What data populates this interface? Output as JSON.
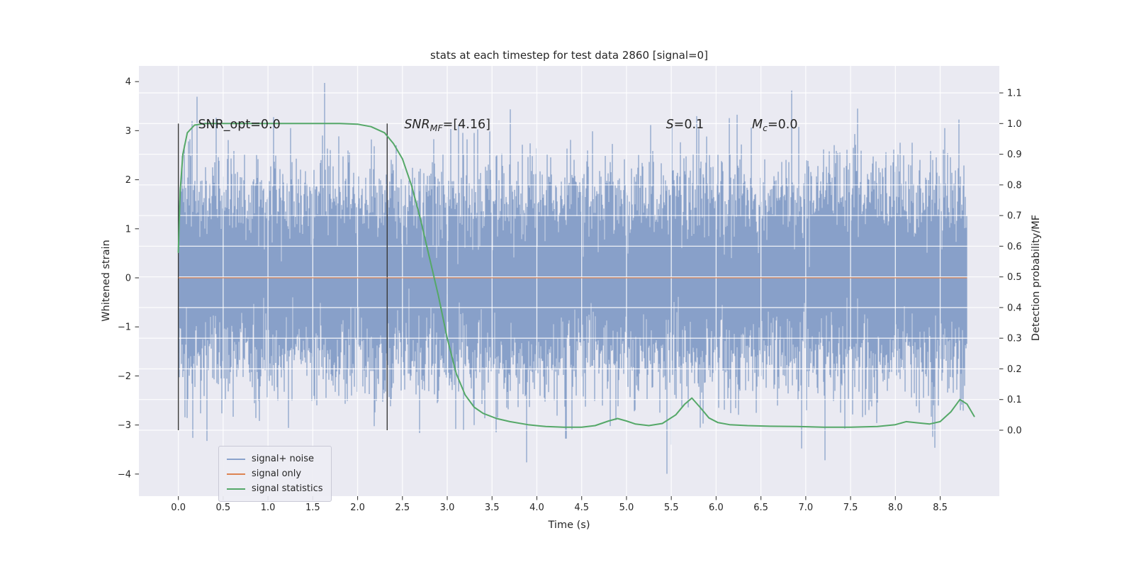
{
  "figure": {
    "title": "stats at each timestep for test data 2860 [signal=0]",
    "xlabel": "Time (s)",
    "ylabel_left": "Whitened strain",
    "ylabel_right": "Detection probability/MF",
    "colors": {
      "figure_bg": "#ffffff",
      "axes_bg": "#eaeaf2",
      "grid": "#ffffff",
      "noise": "#4c72b0",
      "noise_legend": "#8aa2cc",
      "signal": "#dd8452",
      "stat": "#55a868",
      "vline": "#3a3a3a",
      "text": "#262626"
    }
  },
  "chart_data": {
    "type": "line",
    "title": "stats at each timestep for test data 2860 [signal=0]",
    "xlabel": "Time (s)",
    "ylabel": "Whitened strain",
    "ylabel_right": "Detection probability/MF",
    "xlim": [
      -0.44,
      9.16
    ],
    "ylim_left": [
      -4.45,
      4.32
    ],
    "ylim_right": [
      -0.215,
      1.188
    ],
    "xticks": [
      0.0,
      0.5,
      1.0,
      1.5,
      2.0,
      2.5,
      3.0,
      3.5,
      4.0,
      4.5,
      5.0,
      5.5,
      6.0,
      6.5,
      7.0,
      7.5,
      8.0,
      8.5
    ],
    "yticks_left": [
      -4,
      -3,
      -2,
      -1,
      0,
      1,
      2,
      3,
      4
    ],
    "yticks_right": [
      0.0,
      0.1,
      0.2,
      0.3,
      0.4,
      0.5,
      0.6,
      0.7,
      0.8,
      0.9,
      1.0,
      1.1
    ],
    "grid": true,
    "legend": {
      "position": "lower left",
      "entries": [
        {
          "label": "signal+ noise",
          "color": "#8aa2cc"
        },
        {
          "label": "signal only",
          "color": "#dd8452"
        },
        {
          "label": "signal statistics",
          "color": "#55a868"
        }
      ]
    },
    "series": [
      {
        "name": "signal+ noise",
        "axis": "left",
        "kind": "gaussian-noise",
        "mean": 0.0,
        "std": 1.0,
        "t_start": 0.0,
        "t_end": 8.8,
        "approx_range": [
          -4.0,
          4.0
        ],
        "seed": 2860
      },
      {
        "name": "signal only",
        "axis": "left",
        "kind": "constant",
        "value": 0.0,
        "t_start": 0.0,
        "t_end": 8.8
      },
      {
        "name": "signal statistics",
        "axis": "right",
        "kind": "curve",
        "points": [
          [
            0.0,
            0.58
          ],
          [
            0.02,
            0.78
          ],
          [
            0.05,
            0.9
          ],
          [
            0.1,
            0.97
          ],
          [
            0.18,
            0.995
          ],
          [
            0.3,
            1.0
          ],
          [
            0.6,
            1.0
          ],
          [
            1.0,
            1.0
          ],
          [
            1.4,
            1.0
          ],
          [
            1.8,
            1.0
          ],
          [
            2.0,
            0.998
          ],
          [
            2.15,
            0.99
          ],
          [
            2.3,
            0.97
          ],
          [
            2.4,
            0.935
          ],
          [
            2.5,
            0.885
          ],
          [
            2.6,
            0.8
          ],
          [
            2.7,
            0.69
          ],
          [
            2.8,
            0.565
          ],
          [
            2.9,
            0.44
          ],
          [
            3.0,
            0.3
          ],
          [
            3.1,
            0.185
          ],
          [
            3.2,
            0.115
          ],
          [
            3.3,
            0.075
          ],
          [
            3.4,
            0.055
          ],
          [
            3.55,
            0.038
          ],
          [
            3.7,
            0.028
          ],
          [
            3.9,
            0.018
          ],
          [
            4.1,
            0.012
          ],
          [
            4.3,
            0.01
          ],
          [
            4.5,
            0.01
          ],
          [
            4.65,
            0.015
          ],
          [
            4.8,
            0.03
          ],
          [
            4.9,
            0.038
          ],
          [
            5.0,
            0.03
          ],
          [
            5.1,
            0.02
          ],
          [
            5.25,
            0.015
          ],
          [
            5.4,
            0.022
          ],
          [
            5.55,
            0.05
          ],
          [
            5.65,
            0.085
          ],
          [
            5.73,
            0.105
          ],
          [
            5.82,
            0.075
          ],
          [
            5.92,
            0.04
          ],
          [
            6.02,
            0.025
          ],
          [
            6.15,
            0.018
          ],
          [
            6.35,
            0.015
          ],
          [
            6.6,
            0.013
          ],
          [
            6.9,
            0.012
          ],
          [
            7.2,
            0.01
          ],
          [
            7.5,
            0.01
          ],
          [
            7.8,
            0.012
          ],
          [
            8.0,
            0.018
          ],
          [
            8.12,
            0.028
          ],
          [
            8.25,
            0.024
          ],
          [
            8.38,
            0.02
          ],
          [
            8.5,
            0.028
          ],
          [
            8.62,
            0.06
          ],
          [
            8.72,
            0.1
          ],
          [
            8.8,
            0.085
          ],
          [
            8.88,
            0.045
          ]
        ]
      }
    ],
    "vlines": [
      {
        "x": 0.0,
        "y0": 0.0,
        "y1": 1.0,
        "axis": "right"
      },
      {
        "x": 2.33,
        "y0": 0.0,
        "y1": 1.0,
        "axis": "right"
      }
    ],
    "annotations": [
      {
        "pre": "SNR_opt=0.0",
        "sub": "",
        "post": "",
        "x": 0.22,
        "y": 2.99,
        "math": false
      },
      {
        "pre": "SNR",
        "sub": "MF",
        "post": "=[4.16]",
        "x": 2.52,
        "y": 2.99,
        "math": true
      },
      {
        "pre": "S",
        "sub": "",
        "post": "=0.1",
        "x": 5.44,
        "y": 2.99,
        "math": true
      },
      {
        "pre": "M",
        "sub": "c",
        "post": "=0.0",
        "x": 6.4,
        "y": 2.99,
        "math": true
      }
    ]
  }
}
